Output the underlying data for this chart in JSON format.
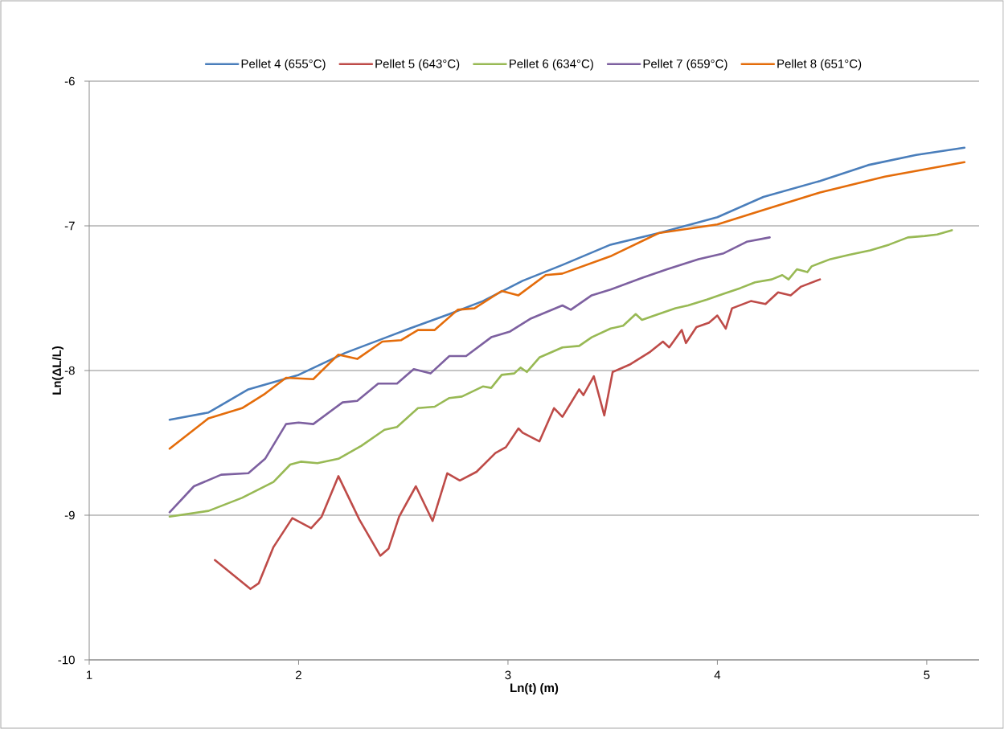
{
  "chart_data": {
    "type": "line",
    "xlabel": "Ln(t) (m)",
    "ylabel": "Ln(ΔL/L)",
    "xlim": [
      1,
      5.25
    ],
    "ylim": [
      -10,
      -6
    ],
    "xticks": [
      1,
      2,
      3,
      4,
      5
    ],
    "yticks": [
      -10,
      -9,
      -8,
      -7,
      -6
    ],
    "grid": "y",
    "legend": "top",
    "series": [
      {
        "name": "Pellet 4 (655°C)",
        "color": "#4a7ebb",
        "x": [
          1.384,
          1.57,
          1.76,
          2.0,
          2.22,
          2.42,
          2.53,
          2.72,
          2.88,
          3.07,
          3.26,
          3.49,
          3.72,
          4.0,
          4.22,
          4.49,
          4.72,
          4.95,
          5.18
        ],
        "values": [
          -8.34,
          -8.29,
          -8.13,
          -8.03,
          -7.88,
          -7.77,
          -7.71,
          -7.61,
          -7.52,
          -7.38,
          -7.27,
          -7.13,
          -7.05,
          -6.94,
          -6.8,
          -6.69,
          -6.58,
          -6.51,
          -6.46
        ]
      },
      {
        "name": "Pellet 5 (643°C)",
        "color": "#be4b48",
        "x": [
          1.6,
          1.77,
          1.81,
          1.88,
          1.97,
          2.06,
          2.11,
          2.19,
          2.29,
          2.39,
          2.43,
          2.48,
          2.56,
          2.64,
          2.71,
          2.77,
          2.85,
          2.94,
          2.99,
          3.05,
          3.07,
          3.15,
          3.22,
          3.26,
          3.34,
          3.36,
          3.41,
          3.46,
          3.5,
          3.58,
          3.68,
          3.74,
          3.77,
          3.83,
          3.85,
          3.9,
          3.96,
          4.0,
          4.04,
          4.07,
          4.16,
          4.23,
          4.29,
          4.35,
          4.4,
          4.49
        ],
        "values": [
          -9.31,
          -9.51,
          -9.47,
          -9.22,
          -9.02,
          -9.09,
          -9.01,
          -8.73,
          -9.03,
          -9.28,
          -9.23,
          -9.01,
          -8.8,
          -9.04,
          -8.71,
          -8.76,
          -8.7,
          -8.57,
          -8.53,
          -8.4,
          -8.43,
          -8.49,
          -8.26,
          -8.32,
          -8.13,
          -8.17,
          -8.04,
          -8.31,
          -8.01,
          -7.96,
          -7.87,
          -7.8,
          -7.84,
          -7.72,
          -7.81,
          -7.7,
          -7.67,
          -7.62,
          -7.71,
          -7.57,
          -7.52,
          -7.54,
          -7.46,
          -7.48,
          -7.42,
          -7.37
        ]
      },
      {
        "name": "Pellet 6 (634°C)",
        "color": "#98b954",
        "x": [
          1.384,
          1.57,
          1.73,
          1.88,
          1.96,
          2.01,
          2.09,
          2.19,
          2.3,
          2.41,
          2.47,
          2.57,
          2.65,
          2.72,
          2.78,
          2.88,
          2.92,
          2.97,
          3.03,
          3.06,
          3.09,
          3.15,
          3.26,
          3.34,
          3.4,
          3.49,
          3.55,
          3.61,
          3.64,
          3.7,
          3.8,
          3.86,
          3.95,
          4.03,
          4.11,
          4.18,
          4.26,
          4.31,
          4.34,
          4.38,
          4.43,
          4.45,
          4.54,
          4.63,
          4.73,
          4.82,
          4.91,
          4.99,
          5.05,
          5.12
        ],
        "values": [
          -9.01,
          -8.97,
          -8.88,
          -8.77,
          -8.65,
          -8.63,
          -8.64,
          -8.61,
          -8.52,
          -8.41,
          -8.39,
          -8.26,
          -8.25,
          -8.19,
          -8.18,
          -8.11,
          -8.12,
          -8.03,
          -8.02,
          -7.98,
          -8.01,
          -7.91,
          -7.84,
          -7.83,
          -7.77,
          -7.71,
          -7.69,
          -7.61,
          -7.65,
          -7.62,
          -7.57,
          -7.55,
          -7.51,
          -7.47,
          -7.43,
          -7.39,
          -7.37,
          -7.34,
          -7.37,
          -7.3,
          -7.32,
          -7.28,
          -7.23,
          -7.2,
          -7.17,
          -7.13,
          -7.08,
          -7.07,
          -7.06,
          -7.03
        ]
      },
      {
        "name": "Pellet 7 (659°C)",
        "color": "#7d60a0",
        "x": [
          1.384,
          1.5,
          1.63,
          1.76,
          1.84,
          1.94,
          2.0,
          2.07,
          2.21,
          2.28,
          2.38,
          2.47,
          2.55,
          2.63,
          2.72,
          2.8,
          2.92,
          3.01,
          3.11,
          3.26,
          3.3,
          3.4,
          3.49,
          3.64,
          3.76,
          3.91,
          4.03,
          4.14,
          4.25
        ],
        "values": [
          -8.98,
          -8.8,
          -8.72,
          -8.71,
          -8.61,
          -8.37,
          -8.36,
          -8.37,
          -8.22,
          -8.21,
          -8.09,
          -8.09,
          -7.99,
          -8.02,
          -7.9,
          -7.9,
          -7.77,
          -7.73,
          -7.64,
          -7.55,
          -7.58,
          -7.48,
          -7.44,
          -7.36,
          -7.3,
          -7.23,
          -7.19,
          -7.11,
          -7.08
        ]
      },
      {
        "name": "Pellet 8 (651°C)",
        "color": "#e46c0a",
        "x": [
          1.384,
          1.57,
          1.73,
          1.84,
          1.94,
          2.07,
          2.19,
          2.28,
          2.4,
          2.49,
          2.57,
          2.65,
          2.76,
          2.84,
          2.97,
          3.05,
          3.18,
          3.26,
          3.49,
          3.72,
          4.0,
          4.22,
          4.49,
          4.8,
          5.18
        ],
        "values": [
          -8.54,
          -8.33,
          -8.26,
          -8.16,
          -8.05,
          -8.06,
          -7.89,
          -7.92,
          -7.8,
          -7.79,
          -7.72,
          -7.72,
          -7.58,
          -7.57,
          -7.45,
          -7.48,
          -7.34,
          -7.33,
          -7.21,
          -7.05,
          -6.99,
          -6.89,
          -6.77,
          -6.66,
          -6.56
        ]
      }
    ]
  }
}
